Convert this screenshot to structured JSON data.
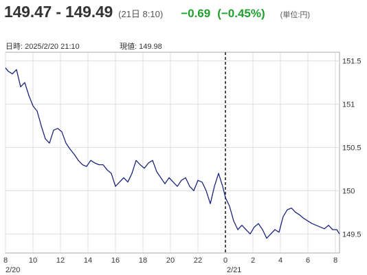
{
  "header": {
    "rate": "149.47 - 149.49",
    "time": "(21日 8:10)",
    "change": "−0.69",
    "change_pct": "(−0.45%)",
    "unit": "(単位:円)",
    "change_color": "#1f9e2c"
  },
  "info": {
    "datetime_label": "日時: 2025/2/20  21:10",
    "current_label": "現値: 149.98"
  },
  "chart_data": {
    "type": "line",
    "line_color": "#1a237e",
    "grid": true,
    "ylim": [
      149.28,
      151.6
    ],
    "y_ticks": [
      {
        "value": 151.5,
        "label": "151.5"
      },
      {
        "value": 151,
        "label": "151"
      },
      {
        "value": 150.5,
        "label": "150.5"
      },
      {
        "value": 150,
        "label": "150"
      },
      {
        "value": 149.5,
        "label": "149.5"
      }
    ],
    "xlim": [
      0,
      24.3
    ],
    "x_ticks": [
      {
        "value": 0,
        "label": "8"
      },
      {
        "value": 2,
        "label": "10"
      },
      {
        "value": 4,
        "label": "12"
      },
      {
        "value": 6,
        "label": "14"
      },
      {
        "value": 8,
        "label": "16"
      },
      {
        "value": 10,
        "label": "18"
      },
      {
        "value": 12,
        "label": "20"
      },
      {
        "value": 14,
        "label": "22"
      },
      {
        "value": 16,
        "label": "0"
      },
      {
        "value": 18,
        "label": "2"
      },
      {
        "value": 20,
        "label": "4"
      },
      {
        "value": 22,
        "label": "6"
      },
      {
        "value": 24,
        "label": "8"
      }
    ],
    "date_labels": [
      {
        "value": 0,
        "label": "2/20"
      },
      {
        "value": 16,
        "label": "2/21"
      }
    ],
    "divider_x": 16,
    "x": [
      0,
      0.2,
      0.5,
      0.8,
      1.1,
      1.4,
      1.7,
      2.0,
      2.3,
      2.6,
      2.9,
      3.2,
      3.5,
      3.8,
      4.1,
      4.4,
      4.7,
      5.0,
      5.3,
      5.6,
      5.9,
      6.2,
      6.5,
      6.8,
      7.1,
      7.4,
      7.7,
      8.0,
      8.3,
      8.6,
      8.9,
      9.2,
      9.5,
      9.8,
      10.1,
      10.4,
      10.7,
      11.0,
      11.3,
      11.6,
      11.9,
      12.2,
      12.5,
      12.8,
      13.1,
      13.4,
      13.7,
      14.0,
      14.3,
      14.6,
      14.9,
      15.2,
      15.5,
      15.8,
      16.0,
      16.3,
      16.6,
      16.9,
      17.2,
      17.5,
      17.8,
      18.1,
      18.4,
      18.7,
      19.0,
      19.3,
      19.6,
      19.9,
      20.2,
      20.5,
      20.8,
      21.1,
      21.4,
      21.7,
      22.0,
      22.3,
      22.6,
      22.9,
      23.2,
      23.5,
      23.8,
      24.1,
      24.3
    ],
    "y": [
      151.42,
      151.38,
      151.35,
      151.4,
      151.2,
      151.25,
      151.1,
      150.98,
      150.92,
      150.75,
      150.6,
      150.55,
      150.7,
      150.72,
      150.68,
      150.55,
      150.48,
      150.42,
      150.35,
      150.3,
      150.28,
      150.35,
      150.32,
      150.3,
      150.3,
      150.24,
      150.2,
      150.05,
      150.1,
      150.15,
      150.1,
      150.2,
      150.35,
      150.3,
      150.26,
      150.32,
      150.35,
      150.22,
      150.15,
      150.08,
      150.15,
      150.1,
      150.05,
      150.12,
      150.15,
      150.05,
      150.0,
      150.12,
      150.1,
      150.0,
      149.85,
      150.05,
      150.2,
      150.05,
      149.92,
      149.82,
      149.65,
      149.55,
      149.6,
      149.55,
      149.5,
      149.58,
      149.62,
      149.55,
      149.45,
      149.5,
      149.55,
      149.52,
      149.7,
      149.78,
      149.8,
      149.75,
      149.72,
      149.68,
      149.65,
      149.62,
      149.6,
      149.58,
      149.56,
      149.6,
      149.55,
      149.55,
      149.5
    ]
  }
}
